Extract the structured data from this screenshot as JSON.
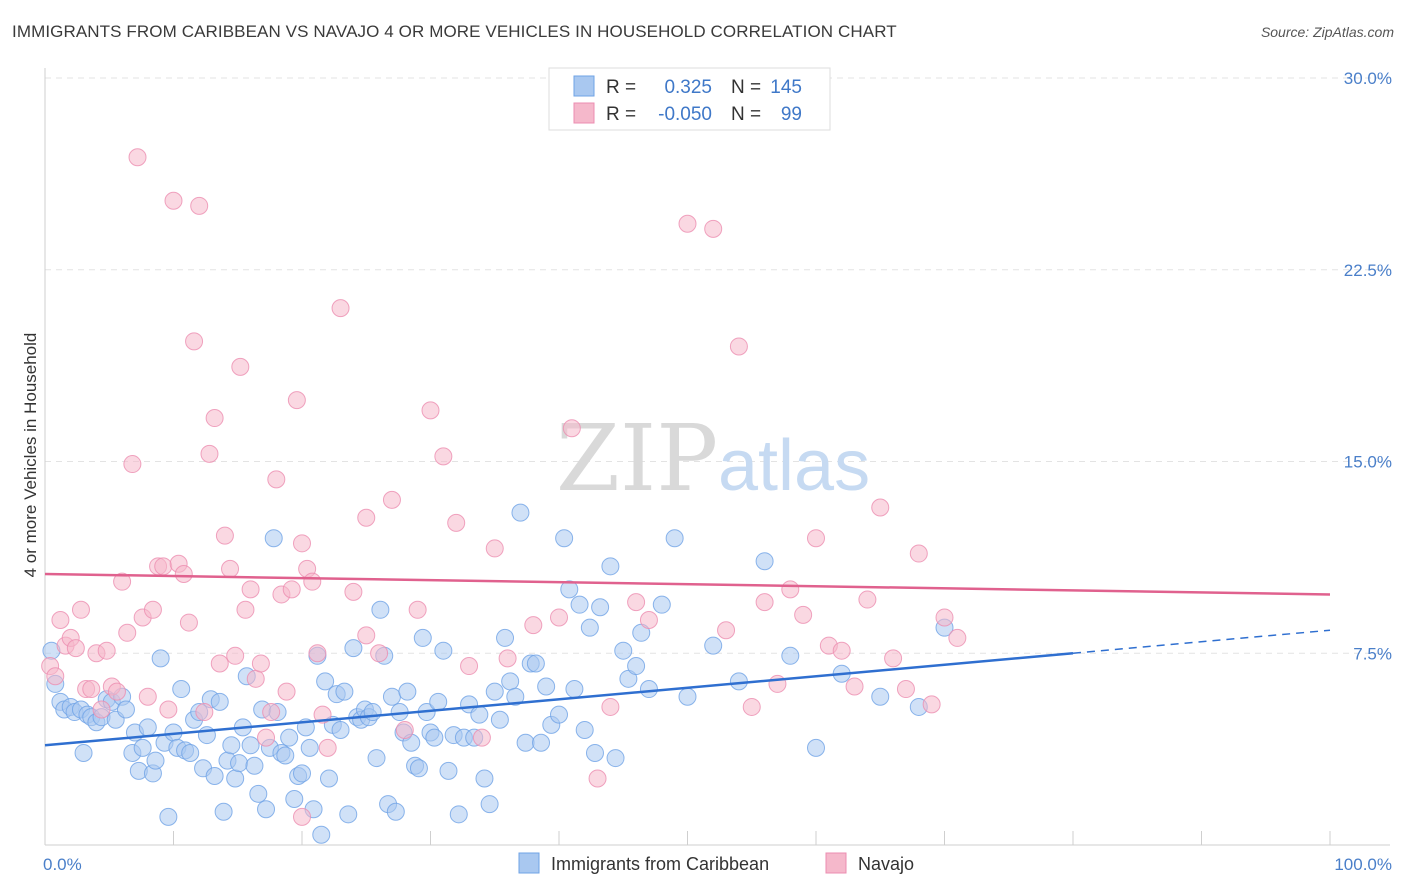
{
  "title": "IMMIGRANTS FROM CARIBBEAN VS NAVAJO 4 OR MORE VEHICLES IN HOUSEHOLD CORRELATION CHART",
  "source": "Source: ZipAtlas.com",
  "watermark": {
    "left": "ZIP",
    "right": "atlas"
  },
  "legend": {
    "r_label": "R =",
    "n_label": "N =",
    "rows": [
      {
        "series": "Immigrants from Caribbean",
        "r": "0.325",
        "n": "145",
        "color": "#a9c8f0"
      },
      {
        "series": "Navajo",
        "r": "-0.050",
        "n": "99",
        "color": "#f5b8cb"
      }
    ]
  },
  "chart_data": {
    "type": "scatter",
    "xlabel": "",
    "ylabel": "4 or more Vehicles in Household",
    "xlim": [
      0,
      100
    ],
    "ylim": [
      0,
      30
    ],
    "x_tick_labels": [
      "0.0%",
      "100.0%"
    ],
    "y_ticks": [
      7.5,
      15.0,
      22.5,
      30.0
    ],
    "y_tick_labels": [
      "7.5%",
      "15.0%",
      "22.5%",
      "30.0%"
    ],
    "grid": "horizontal dashed",
    "legend_position": "top-center",
    "series": [
      {
        "name": "Immigrants from Caribbean",
        "color": "#6fa3e6",
        "fill": "#a9c8f0",
        "trend": {
          "x": [
            0,
            80
          ],
          "y": [
            3.9,
            7.5
          ],
          "dashed_extension": {
            "x": [
              80,
              100
            ],
            "y": [
              7.5,
              8.4
            ]
          }
        },
        "points": [
          [
            0.5,
            7.6
          ],
          [
            0.8,
            6.3
          ],
          [
            1.2,
            5.6
          ],
          [
            1.5,
            5.3
          ],
          [
            2,
            5.4
          ],
          [
            2.3,
            5.2
          ],
          [
            2.8,
            5.3
          ],
          [
            3,
            3.6
          ],
          [
            3.3,
            5.1
          ],
          [
            3.6,
            5.0
          ],
          [
            4,
            4.8
          ],
          [
            4.4,
            5.0
          ],
          [
            4.8,
            5.7
          ],
          [
            5.2,
            5.6
          ],
          [
            5.5,
            4.9
          ],
          [
            6,
            5.8
          ],
          [
            6.3,
            5.3
          ],
          [
            6.8,
            3.6
          ],
          [
            7,
            4.4
          ],
          [
            7.3,
            2.9
          ],
          [
            7.6,
            3.8
          ],
          [
            8,
            4.6
          ],
          [
            8.4,
            2.8
          ],
          [
            8.6,
            3.3
          ],
          [
            9,
            7.3
          ],
          [
            9.3,
            4.0
          ],
          [
            9.6,
            1.1
          ],
          [
            10,
            4.4
          ],
          [
            10.3,
            3.8
          ],
          [
            10.6,
            6.1
          ],
          [
            10.9,
            3.7
          ],
          [
            11.3,
            3.6
          ],
          [
            11.6,
            4.9
          ],
          [
            12,
            5.2
          ],
          [
            12.3,
            3.0
          ],
          [
            12.6,
            4.3
          ],
          [
            12.9,
            5.7
          ],
          [
            13.2,
            2.7
          ],
          [
            13.6,
            5.6
          ],
          [
            13.9,
            1.3
          ],
          [
            14.2,
            3.3
          ],
          [
            14.5,
            3.9
          ],
          [
            14.8,
            2.6
          ],
          [
            15.1,
            3.2
          ],
          [
            15.4,
            4.6
          ],
          [
            15.7,
            6.6
          ],
          [
            16,
            3.9
          ],
          [
            16.3,
            3.1
          ],
          [
            16.6,
            2.0
          ],
          [
            16.9,
            5.3
          ],
          [
            17.2,
            1.4
          ],
          [
            17.5,
            3.8
          ],
          [
            17.8,
            12.0
          ],
          [
            18.1,
            5.2
          ],
          [
            18.4,
            3.6
          ],
          [
            18.7,
            3.5
          ],
          [
            19,
            4.2
          ],
          [
            19.4,
            1.8
          ],
          [
            19.7,
            2.7
          ],
          [
            20,
            2.8
          ],
          [
            20.3,
            4.6
          ],
          [
            20.6,
            3.8
          ],
          [
            20.9,
            1.4
          ],
          [
            21.2,
            7.4
          ],
          [
            21.5,
            0.4
          ],
          [
            21.8,
            6.4
          ],
          [
            22.1,
            2.6
          ],
          [
            22.4,
            4.7
          ],
          [
            22.7,
            5.9
          ],
          [
            23,
            4.5
          ],
          [
            23.3,
            6.0
          ],
          [
            23.6,
            1.2
          ],
          [
            24,
            7.7
          ],
          [
            24.3,
            5.0
          ],
          [
            24.6,
            4.9
          ],
          [
            24.9,
            5.3
          ],
          [
            25.2,
            5.0
          ],
          [
            25.5,
            5.2
          ],
          [
            25.8,
            3.4
          ],
          [
            26.1,
            9.2
          ],
          [
            26.4,
            7.4
          ],
          [
            26.7,
            1.6
          ],
          [
            27,
            5.8
          ],
          [
            27.3,
            1.3
          ],
          [
            27.6,
            5.2
          ],
          [
            27.9,
            4.4
          ],
          [
            28.2,
            6.0
          ],
          [
            28.5,
            4.0
          ],
          [
            28.8,
            3.1
          ],
          [
            29.1,
            3.0
          ],
          [
            29.4,
            8.1
          ],
          [
            29.7,
            5.2
          ],
          [
            30,
            4.4
          ],
          [
            30.3,
            4.2
          ],
          [
            30.6,
            5.6
          ],
          [
            31,
            7.6
          ],
          [
            31.4,
            2.9
          ],
          [
            31.8,
            4.3
          ],
          [
            32.2,
            1.2
          ],
          [
            32.6,
            4.2
          ],
          [
            33,
            5.5
          ],
          [
            33.4,
            4.2
          ],
          [
            33.8,
            5.1
          ],
          [
            34.2,
            2.6
          ],
          [
            34.6,
            1.6
          ],
          [
            35,
            6.0
          ],
          [
            35.4,
            4.9
          ],
          [
            35.8,
            8.1
          ],
          [
            36.2,
            6.4
          ],
          [
            36.6,
            5.8
          ],
          [
            37,
            13.0
          ],
          [
            37.4,
            4.0
          ],
          [
            37.8,
            7.1
          ],
          [
            38.2,
            7.1
          ],
          [
            38.6,
            4.0
          ],
          [
            39,
            6.2
          ],
          [
            39.4,
            4.7
          ],
          [
            40,
            5.1
          ],
          [
            40.4,
            12.0
          ],
          [
            40.8,
            10.0
          ],
          [
            41.2,
            6.1
          ],
          [
            41.6,
            9.4
          ],
          [
            42,
            4.5
          ],
          [
            42.4,
            8.5
          ],
          [
            42.8,
            3.6
          ],
          [
            43.2,
            9.3
          ],
          [
            44,
            10.9
          ],
          [
            44.4,
            3.4
          ],
          [
            45,
            7.6
          ],
          [
            45.4,
            6.5
          ],
          [
            46,
            7.0
          ],
          [
            46.4,
            8.3
          ],
          [
            47,
            6.1
          ],
          [
            48,
            9.4
          ],
          [
            49,
            12.0
          ],
          [
            50,
            5.8
          ],
          [
            52,
            7.8
          ],
          [
            54,
            6.4
          ],
          [
            56,
            11.1
          ],
          [
            58,
            7.4
          ],
          [
            60,
            3.8
          ],
          [
            62,
            6.7
          ],
          [
            65,
            5.8
          ],
          [
            68,
            5.4
          ],
          [
            70,
            8.5
          ]
        ]
      },
      {
        "name": "Navajo",
        "color": "#ec8db0",
        "fill": "#f5b8cb",
        "trend": {
          "x": [
            0,
            100
          ],
          "y": [
            10.6,
            9.8
          ]
        },
        "points": [
          [
            0.4,
            7.0
          ],
          [
            0.8,
            6.6
          ],
          [
            1.2,
            8.8
          ],
          [
            1.6,
            7.8
          ],
          [
            2,
            8.1
          ],
          [
            2.4,
            7.7
          ],
          [
            2.8,
            9.2
          ],
          [
            3.2,
            6.1
          ],
          [
            3.6,
            6.1
          ],
          [
            4,
            7.5
          ],
          [
            4.4,
            5.3
          ],
          [
            4.8,
            7.6
          ],
          [
            5.2,
            6.2
          ],
          [
            5.6,
            6.0
          ],
          [
            6,
            10.3
          ],
          [
            6.4,
            8.3
          ],
          [
            6.8,
            14.9
          ],
          [
            7.2,
            26.9
          ],
          [
            7.6,
            8.9
          ],
          [
            8,
            5.8
          ],
          [
            8.4,
            9.2
          ],
          [
            8.8,
            10.9
          ],
          [
            9.2,
            10.9
          ],
          [
            9.6,
            5.3
          ],
          [
            10,
            25.2
          ],
          [
            10.4,
            11.0
          ],
          [
            10.8,
            10.6
          ],
          [
            11.2,
            8.7
          ],
          [
            11.6,
            19.7
          ],
          [
            12,
            25.0
          ],
          [
            12.4,
            5.2
          ],
          [
            12.8,
            15.3
          ],
          [
            13.2,
            16.7
          ],
          [
            13.6,
            7.1
          ],
          [
            14,
            12.1
          ],
          [
            14.4,
            10.8
          ],
          [
            14.8,
            7.4
          ],
          [
            15.2,
            18.7
          ],
          [
            15.6,
            9.2
          ],
          [
            16,
            10.0
          ],
          [
            16.4,
            6.5
          ],
          [
            16.8,
            7.1
          ],
          [
            17.2,
            4.2
          ],
          [
            17.6,
            5.2
          ],
          [
            18,
            14.3
          ],
          [
            18.4,
            9.8
          ],
          [
            18.8,
            6.0
          ],
          [
            19.2,
            10.0
          ],
          [
            19.6,
            17.4
          ],
          [
            20,
            11.8
          ],
          [
            20.4,
            10.8
          ],
          [
            20.8,
            10.3
          ],
          [
            21.2,
            7.5
          ],
          [
            21.6,
            5.1
          ],
          [
            22,
            3.8
          ],
          [
            23,
            21.0
          ],
          [
            24,
            9.9
          ],
          [
            25,
            8.2
          ],
          [
            26,
            7.5
          ],
          [
            27,
            13.5
          ],
          [
            28,
            4.5
          ],
          [
            29,
            9.2
          ],
          [
            30,
            17.0
          ],
          [
            31,
            15.2
          ],
          [
            32,
            12.6
          ],
          [
            33,
            7.0
          ],
          [
            34,
            4.2
          ],
          [
            35,
            11.6
          ],
          [
            36,
            7.3
          ],
          [
            38,
            8.6
          ],
          [
            40,
            8.9
          ],
          [
            41,
            16.3
          ],
          [
            43,
            2.6
          ],
          [
            44,
            5.4
          ],
          [
            46,
            9.5
          ],
          [
            47,
            8.8
          ],
          [
            50,
            24.3
          ],
          [
            52,
            24.1
          ],
          [
            53,
            8.4
          ],
          [
            54,
            19.5
          ],
          [
            55,
            5.4
          ],
          [
            56,
            9.5
          ],
          [
            57,
            6.3
          ],
          [
            58,
            10.0
          ],
          [
            59,
            9.0
          ],
          [
            60,
            12.0
          ],
          [
            61,
            7.8
          ],
          [
            62,
            7.6
          ],
          [
            63,
            6.2
          ],
          [
            64,
            9.6
          ],
          [
            65,
            13.2
          ],
          [
            66,
            7.3
          ],
          [
            67,
            6.1
          ],
          [
            68,
            11.4
          ],
          [
            69,
            5.5
          ],
          [
            70,
            8.9
          ],
          [
            71,
            8.1
          ],
          [
            20,
            1.1
          ],
          [
            25,
            12.8
          ]
        ]
      }
    ]
  },
  "bottom_legend": [
    {
      "label": "Immigrants from Caribbean",
      "color": "#a9c8f0"
    },
    {
      "label": "Navajo",
      "color": "#f5b8cb"
    }
  ]
}
